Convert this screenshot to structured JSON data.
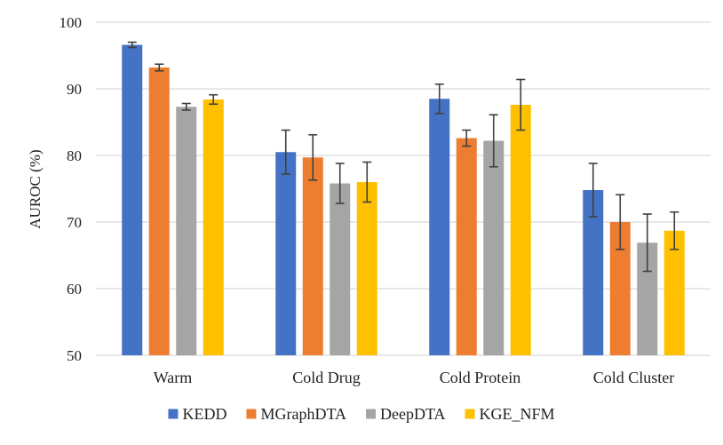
{
  "chart_data": {
    "type": "bar",
    "title": "",
    "xlabel": "",
    "ylabel": "AUROC (%)",
    "ylim": [
      50,
      100
    ],
    "yticks": [
      50,
      60,
      70,
      80,
      90,
      100
    ],
    "grid": true,
    "legend_position": "bottom",
    "categories": [
      "Warm",
      "Cold Drug",
      "Cold Protein",
      "Cold Cluster"
    ],
    "series": [
      {
        "name": "KEDD",
        "color": "#4472C4",
        "values": [
          96.6,
          80.5,
          88.5,
          74.8
        ],
        "errors": [
          0.4,
          3.3,
          2.2,
          4.0
        ]
      },
      {
        "name": "MGraphDTA",
        "color": "#ED7D31",
        "values": [
          93.2,
          79.7,
          82.6,
          70.0
        ],
        "errors": [
          0.5,
          3.4,
          1.2,
          4.1
        ]
      },
      {
        "name": "DeepDTA",
        "color": "#A5A5A5",
        "values": [
          87.3,
          75.8,
          82.2,
          66.9
        ],
        "errors": [
          0.5,
          3.0,
          3.9,
          4.3
        ]
      },
      {
        "name": "KGE_NFM",
        "color": "#FFC000",
        "values": [
          88.4,
          76.0,
          87.6,
          68.7
        ],
        "errors": [
          0.7,
          3.0,
          3.8,
          2.8
        ]
      }
    ]
  }
}
